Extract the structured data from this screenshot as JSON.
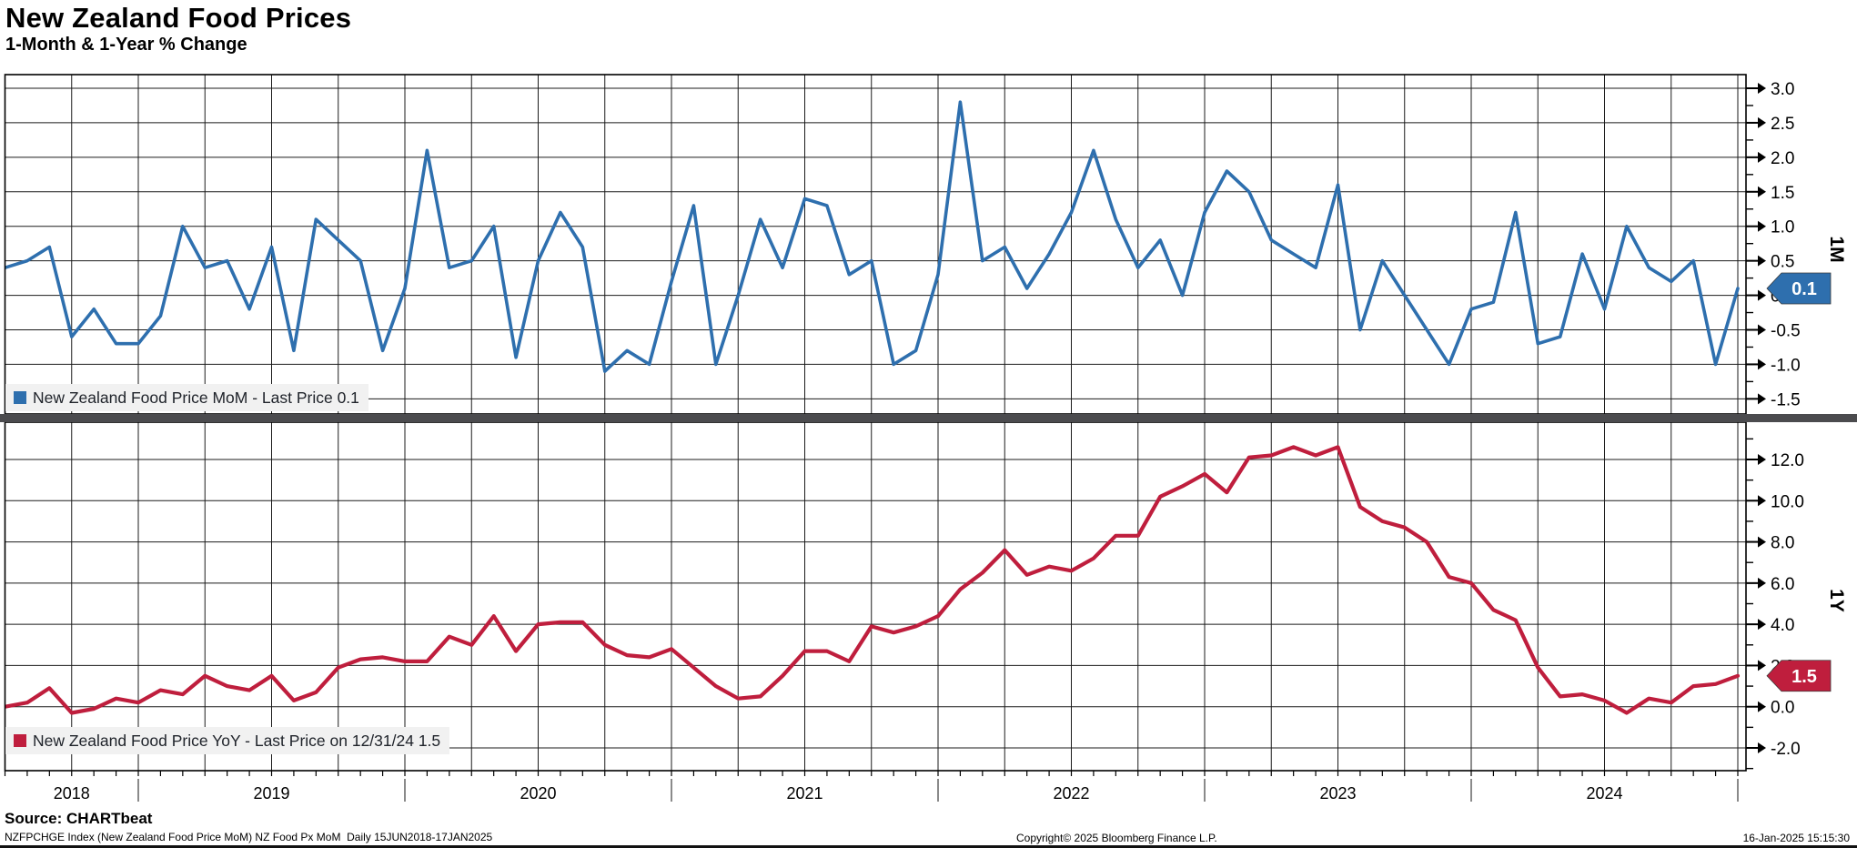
{
  "header": {
    "title": "New Zealand Food Prices",
    "subtitle": "1-Month & 1-Year % Change"
  },
  "colors": {
    "mom_blue": "#2e6fae",
    "yoy_red": "#bf1e3d",
    "grid": "#1b1b1b",
    "separator_band": "#4b4b4e",
    "legend_bg": "#f1f1f1",
    "year_tick_gray": "#8a8a8a"
  },
  "top_panel": {
    "axis_title": "1M",
    "legend_label": "New Zealand Food Price MoM - Last Price 0.1",
    "last_price_badge": "0.1",
    "tick_labels": [
      "3.0",
      "2.5",
      "2.0",
      "1.5",
      "1.0",
      "0.5",
      "0.0",
      "-0.5",
      "-1.0",
      "-1.5"
    ]
  },
  "bottom_panel": {
    "axis_title": "1Y",
    "legend_label": "New Zealand Food Price YoY - Last Price on 12/31/24 1.5",
    "last_price_badge": "1.5",
    "tick_labels": [
      "12.0",
      "10.0",
      "8.0",
      "6.0",
      "4.0",
      "2.0",
      "0.0",
      "-2.0"
    ]
  },
  "x_axis": {
    "year_labels": [
      "2018",
      "2019",
      "2020",
      "2021",
      "2022",
      "2023",
      "2024"
    ]
  },
  "source_line": "Source: CHARTbeat",
  "footer": {
    "ticker_line": "NZFPCHGE Index (New Zealand Food Price MoM) NZ Food Px MoM  Daily 15JUN2018-17JAN2025",
    "copyright": "Copyright© 2025 Bloomberg Finance L.P.",
    "timestamp": "16-Jan-2025 15:15:30"
  },
  "chart_data": [
    {
      "type": "line",
      "name": "New Zealand Food Price MoM",
      "panel": "top",
      "unit": "% 1-month change",
      "frequency": "monthly",
      "start": "2018-06",
      "end": "2024-12",
      "last_price": 0.1,
      "ylim": [
        -1.72,
        3.2
      ],
      "yticks": [
        3.0,
        2.5,
        2.0,
        1.5,
        1.0,
        0.5,
        0.0,
        -0.5,
        -1.0,
        -1.5
      ],
      "legend_position": "bottom-left-inside",
      "grid": true,
      "axis_side": "right",
      "values": [
        0.4,
        0.5,
        0.7,
        -0.6,
        -0.2,
        -0.7,
        -0.7,
        -0.3,
        1.0,
        0.4,
        0.5,
        -0.2,
        0.7,
        -0.8,
        1.1,
        0.8,
        0.5,
        -0.8,
        0.1,
        2.1,
        0.4,
        0.5,
        1.0,
        -0.9,
        0.5,
        1.2,
        0.7,
        -1.1,
        -0.8,
        -1.0,
        0.2,
        1.3,
        -1.0,
        0.0,
        1.1,
        0.4,
        1.4,
        1.3,
        0.3,
        0.5,
        -1.0,
        -0.8,
        0.3,
        2.8,
        0.5,
        0.7,
        0.1,
        0.6,
        1.2,
        2.1,
        1.1,
        0.4,
        0.8,
        0.0,
        1.2,
        1.8,
        1.5,
        0.8,
        0.6,
        0.4,
        1.6,
        -0.5,
        0.5,
        0.0,
        -0.5,
        -1.0,
        -0.2,
        -0.1,
        1.2,
        -0.7,
        -0.6,
        0.6,
        -0.2,
        1.0,
        0.4,
        0.2,
        0.5,
        -1.0,
        0.1
      ]
    },
    {
      "type": "line",
      "name": "New Zealand Food Price YoY",
      "panel": "bottom",
      "unit": "% 1-year change",
      "frequency": "monthly",
      "start": "2018-06",
      "end": "2024-12",
      "last_price": 1.5,
      "last_price_date": "12/31/24",
      "ylim": [
        -3.1,
        13.8
      ],
      "yticks": [
        12.0,
        10.0,
        8.0,
        6.0,
        4.0,
        2.0,
        0.0,
        -2.0
      ],
      "legend_position": "bottom-left-inside",
      "grid": true,
      "axis_side": "right",
      "values": [
        0.0,
        0.2,
        0.9,
        -0.3,
        -0.1,
        0.4,
        0.2,
        0.8,
        0.6,
        1.5,
        1.0,
        0.8,
        1.5,
        0.3,
        0.7,
        1.9,
        2.3,
        2.4,
        2.2,
        2.2,
        3.4,
        3.0,
        4.4,
        2.7,
        4.0,
        4.1,
        4.1,
        3.0,
        2.5,
        2.4,
        2.8,
        1.9,
        1.0,
        0.4,
        0.5,
        1.5,
        2.7,
        2.7,
        2.2,
        3.9,
        3.6,
        3.9,
        4.4,
        5.7,
        6.5,
        7.6,
        6.4,
        6.8,
        6.6,
        7.2,
        8.3,
        8.3,
        10.2,
        10.7,
        11.3,
        10.4,
        12.1,
        12.2,
        12.6,
        12.2,
        12.6,
        9.7,
        9.0,
        8.7,
        8.0,
        6.3,
        6.0,
        4.7,
        4.2,
        1.9,
        0.5,
        0.6,
        0.3,
        -0.3,
        0.4,
        0.2,
        1.0,
        1.1,
        1.5
      ]
    }
  ]
}
